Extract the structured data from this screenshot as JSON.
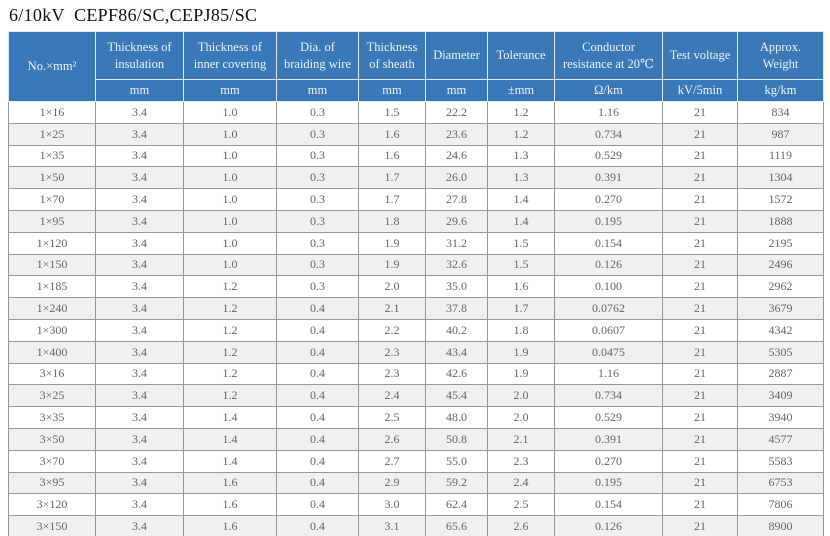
{
  "page_title": "6/10kV  CEPF86/SC,CEPJ85/SC",
  "colors": {
    "header_bg": "#3a79b8",
    "header_text": "#edf2f9",
    "row_stripe": "#f0f0f0",
    "grid_border": "#979797",
    "data_text": "#666666"
  },
  "table": {
    "columns": [
      {
        "key": "size",
        "label": "No.×mm²",
        "unit": ""
      },
      {
        "key": "insulation",
        "label": "Thickness of insulation",
        "unit": "mm"
      },
      {
        "key": "inner-covering",
        "label": "Thickness of inner covering",
        "unit": "mm"
      },
      {
        "key": "braiding-wire",
        "label": "Dia. of braiding wire",
        "unit": "mm"
      },
      {
        "key": "sheath",
        "label": "Thickness of sheath",
        "unit": "mm"
      },
      {
        "key": "diameter",
        "label": "Diameter",
        "unit": "mm"
      },
      {
        "key": "tolerance",
        "label": "Tolerance",
        "unit": "±mm"
      },
      {
        "key": "resistance",
        "label": "Conductor resistance at 20℃",
        "unit": "Ω/km"
      },
      {
        "key": "test-voltage",
        "label": "Test voltage",
        "unit": "kV/5min"
      },
      {
        "key": "weight",
        "label": "Approx. Weight",
        "unit": "kg/km"
      }
    ],
    "rows": [
      [
        "1×16",
        "3.4",
        "1.0",
        "0.3",
        "1.5",
        "22.2",
        "1.2",
        "1.16",
        "21",
        "834"
      ],
      [
        "1×25",
        "3.4",
        "1.0",
        "0.3",
        "1.6",
        "23.6",
        "1.2",
        "0.734",
        "21",
        "987"
      ],
      [
        "1×35",
        "3.4",
        "1.0",
        "0.3",
        "1.6",
        "24.6",
        "1.3",
        "0.529",
        "21",
        "1119"
      ],
      [
        "1×50",
        "3.4",
        "1.0",
        "0.3",
        "1.7",
        "26.0",
        "1.3",
        "0.391",
        "21",
        "1304"
      ],
      [
        "1×70",
        "3.4",
        "1.0",
        "0.3",
        "1.7",
        "27.8",
        "1.4",
        "0.270",
        "21",
        "1572"
      ],
      [
        "1×95",
        "3.4",
        "1.0",
        "0.3",
        "1.8",
        "29.6",
        "1.4",
        "0.195",
        "21",
        "1888"
      ],
      [
        "1×120",
        "3.4",
        "1.0",
        "0.3",
        "1.9",
        "31.2",
        "1.5",
        "0.154",
        "21",
        "2195"
      ],
      [
        "1×150",
        "3.4",
        "1.0",
        "0.3",
        "1.9",
        "32.6",
        "1.5",
        "0.126",
        "21",
        "2496"
      ],
      [
        "1×185",
        "3.4",
        "1.2",
        "0.3",
        "2.0",
        "35.0",
        "1.6",
        "0.100",
        "21",
        "2962"
      ],
      [
        "1×240",
        "3.4",
        "1.2",
        "0.4",
        "2.1",
        "37.8",
        "1.7",
        "0.0762",
        "21",
        "3679"
      ],
      [
        "1×300",
        "3.4",
        "1.2",
        "0.4",
        "2.2",
        "40.2",
        "1.8",
        "0.0607",
        "21",
        "4342"
      ],
      [
        "1×400",
        "3.4",
        "1.2",
        "0.4",
        "2.3",
        "43.4",
        "1.9",
        "0.0475",
        "21",
        "5305"
      ],
      [
        "3×16",
        "3.4",
        "1.2",
        "0.4",
        "2.3",
        "42.6",
        "1.9",
        "1.16",
        "21",
        "2887"
      ],
      [
        "3×25",
        "3.4",
        "1.2",
        "0.4",
        "2.4",
        "45.4",
        "2.0",
        "0.734",
        "21",
        "3409"
      ],
      [
        "3×35",
        "3.4",
        "1.4",
        "0.4",
        "2.5",
        "48.0",
        "2.0",
        "0.529",
        "21",
        "3940"
      ],
      [
        "3×50",
        "3.4",
        "1.4",
        "0.4",
        "2.6",
        "50.8",
        "2.1",
        "0.391",
        "21",
        "4577"
      ],
      [
        "3×70",
        "3.4",
        "1.4",
        "0.4",
        "2.7",
        "55.0",
        "2.3",
        "0.270",
        "21",
        "5583"
      ],
      [
        "3×95",
        "3.4",
        "1.6",
        "0.4",
        "2.9",
        "59.2",
        "2.4",
        "0.195",
        "21",
        "6753"
      ],
      [
        "3×120",
        "3.4",
        "1.6",
        "0.4",
        "3.0",
        "62.4",
        "2.5",
        "0.154",
        "21",
        "7806"
      ],
      [
        "3×150",
        "3.4",
        "1.6",
        "0.4",
        "3.1",
        "65.6",
        "2.6",
        "0.126",
        "21",
        "8900"
      ]
    ]
  }
}
